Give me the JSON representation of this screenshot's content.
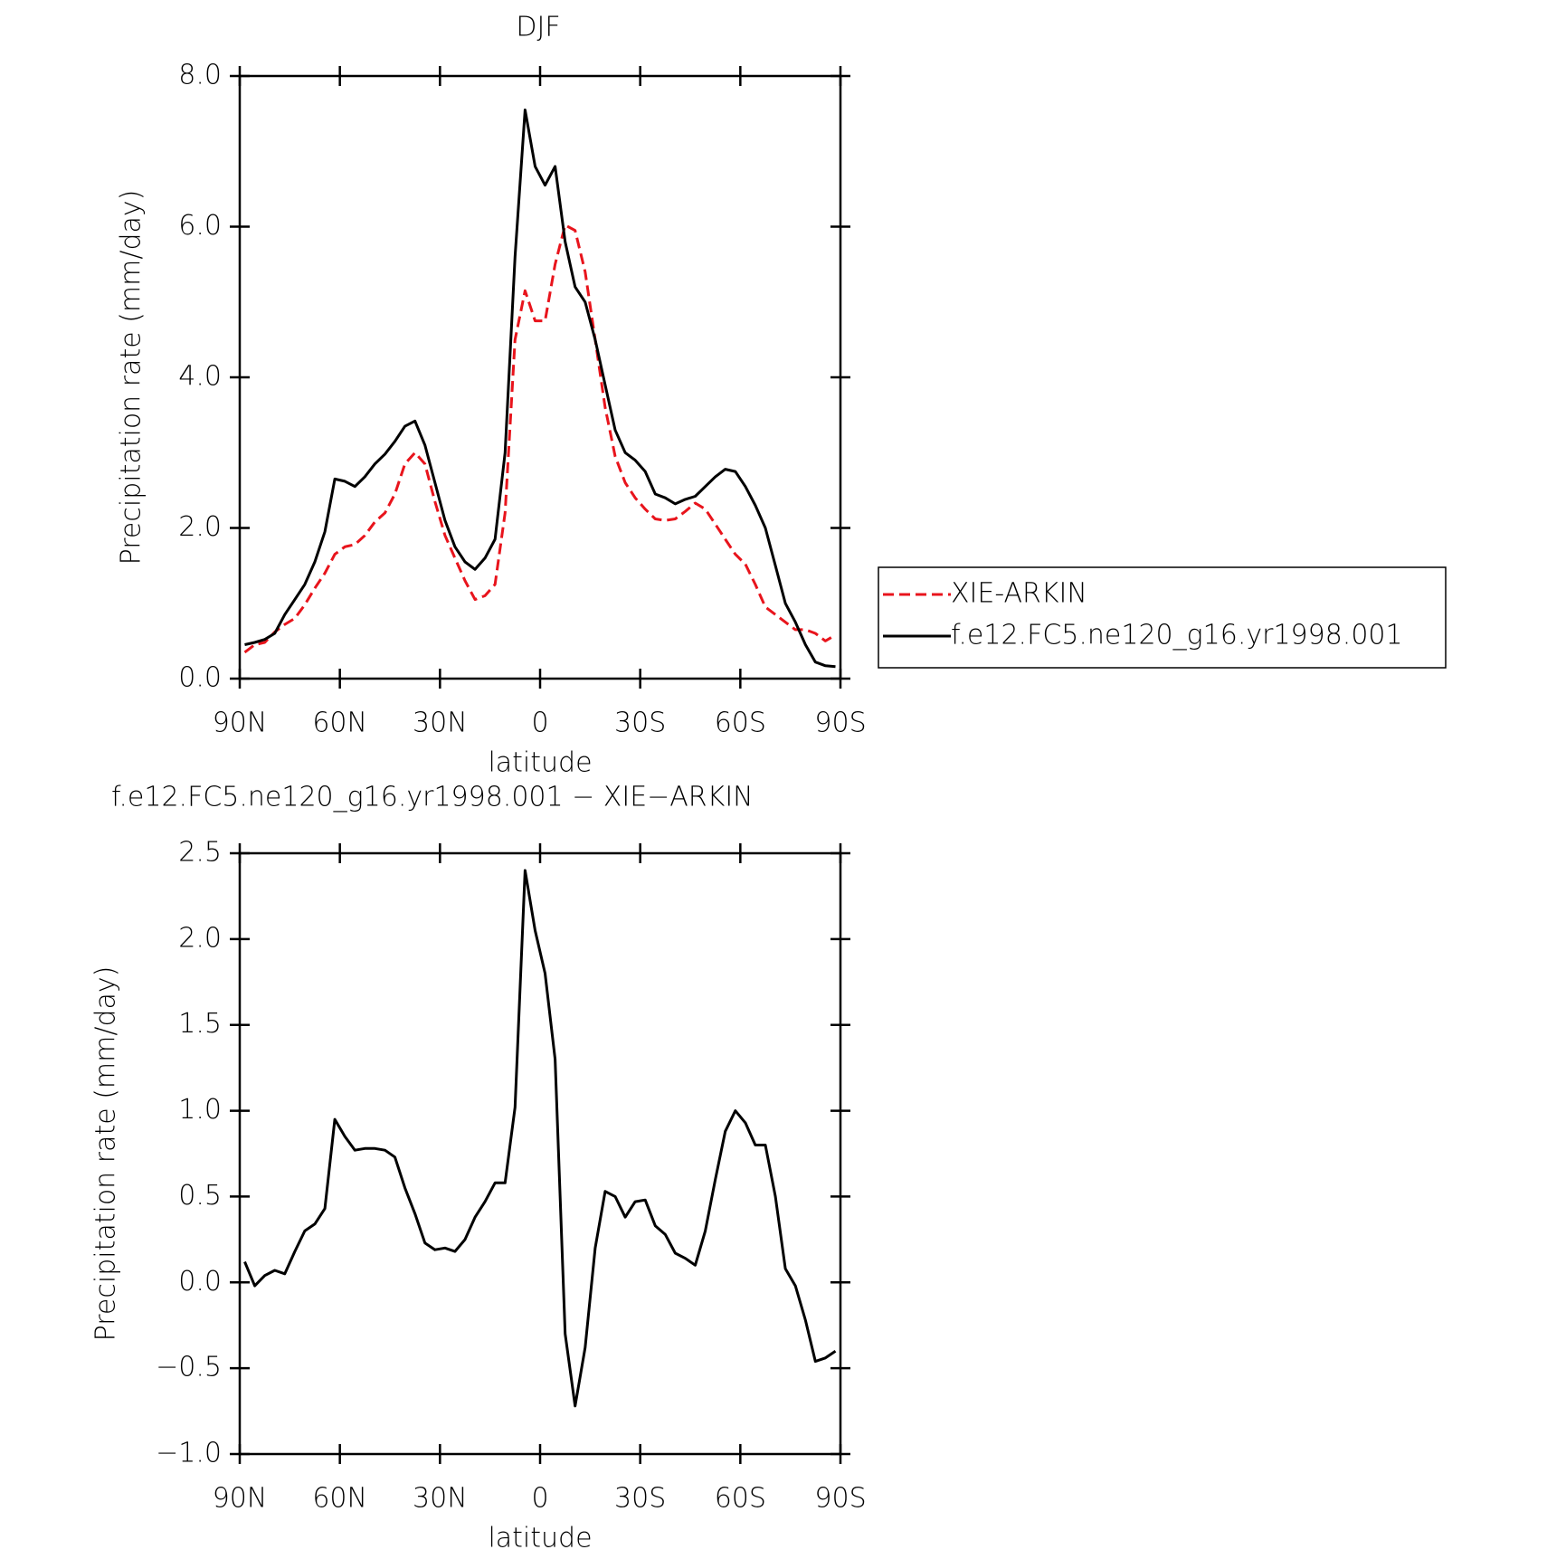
{
  "chart_data": [
    {
      "type": "line",
      "title": "DJF",
      "xlabel": "latitude",
      "ylabel": "Precipitation rate (mm/day)",
      "x": [
        88.5,
        85.5,
        82.5,
        79.5,
        76.5,
        73.5,
        70.5,
        67.5,
        64.5,
        61.5,
        58.5,
        55.5,
        52.5,
        49.5,
        46.5,
        43.5,
        40.5,
        37.5,
        34.5,
        31.5,
        28.5,
        25.5,
        22.5,
        19.5,
        16.5,
        13.5,
        10.5,
        7.5,
        4.5,
        1.5,
        -1.5,
        -4.5,
        -7.5,
        -10.5,
        -13.5,
        -16.5,
        -19.5,
        -22.5,
        -25.5,
        -28.5,
        -31.5,
        -34.5,
        -37.5,
        -40.5,
        -43.5,
        -46.5,
        -49.5,
        -52.5,
        -55.5,
        -58.5,
        -61.5,
        -64.5,
        -67.5,
        -70.5,
        -73.5,
        -76.5,
        -79.5,
        -82.5,
        -85.5,
        -88.5
      ],
      "series": [
        {
          "name": "XIE-ARKIN",
          "color": "#e8141c",
          "linestyle": "dashed",
          "values": [
            0.35,
            0.45,
            0.48,
            0.62,
            0.72,
            0.8,
            0.98,
            1.2,
            1.4,
            1.65,
            1.75,
            1.78,
            1.9,
            2.08,
            2.2,
            2.45,
            2.85,
            3.0,
            2.85,
            2.35,
            1.9,
            1.6,
            1.3,
            1.05,
            1.1,
            1.25,
            2.2,
            4.5,
            5.15,
            4.75,
            4.75,
            5.5,
            6.02,
            5.95,
            5.4,
            4.5,
            3.6,
            2.95,
            2.6,
            2.4,
            2.25,
            2.12,
            2.1,
            2.12,
            2.22,
            2.33,
            2.25,
            2.05,
            1.85,
            1.65,
            1.52,
            1.25,
            0.95,
            0.85,
            0.75,
            0.65,
            0.65,
            0.6,
            0.5,
            0.58
          ]
        },
        {
          "name": "f.e12.FC5.ne120_g16.yr1998.001",
          "color": "#000000",
          "linestyle": "solid",
          "values": [
            0.45,
            0.48,
            0.52,
            0.6,
            0.85,
            1.05,
            1.25,
            1.55,
            1.95,
            2.65,
            2.62,
            2.55,
            2.68,
            2.85,
            2.98,
            3.15,
            3.35,
            3.42,
            3.1,
            2.6,
            2.1,
            1.75,
            1.55,
            1.45,
            1.6,
            1.85,
            3.0,
            5.6,
            7.55,
            6.8,
            6.55,
            6.8,
            5.8,
            5.2,
            5.0,
            4.5,
            3.9,
            3.3,
            3.0,
            2.9,
            2.75,
            2.45,
            2.4,
            2.32,
            2.38,
            2.42,
            2.55,
            2.68,
            2.78,
            2.75,
            2.55,
            2.3,
            2.0,
            1.5,
            1.0,
            0.75,
            0.45,
            0.22,
            0.17,
            0.16
          ]
        }
      ],
      "xlim": [
        90,
        -90
      ],
      "xticks": [
        {
          "value": 90,
          "label": "90N"
        },
        {
          "value": 60,
          "label": "60N"
        },
        {
          "value": 30,
          "label": "30N"
        },
        0,
        {
          "value": -30,
          "label": "30S"
        },
        {
          "value": -60,
          "label": "60S"
        },
        {
          "value": -90,
          "label": "90S"
        }
      ],
      "ylim": [
        0,
        8
      ],
      "yticks": [
        {
          "value": 0,
          "label": "0.0"
        },
        {
          "value": 2,
          "label": "2.0"
        },
        {
          "value": 4,
          "label": "4.0"
        },
        {
          "value": 6,
          "label": "6.0"
        },
        {
          "value": 8,
          "label": "8.0"
        }
      ],
      "legend": "right"
    },
    {
      "type": "line",
      "title": "f.e12.FC5.ne120_g16.yr1998.001 − XIE−ARKIN",
      "xlabel": "latitude",
      "ylabel": "Precipitation rate (mm/day)",
      "x": [
        88.5,
        85.5,
        82.5,
        79.5,
        76.5,
        73.5,
        70.5,
        67.5,
        64.5,
        61.5,
        58.5,
        55.5,
        52.5,
        49.5,
        46.5,
        43.5,
        40.5,
        37.5,
        34.5,
        31.5,
        28.5,
        25.5,
        22.5,
        19.5,
        16.5,
        13.5,
        10.5,
        7.5,
        4.5,
        1.5,
        -1.5,
        -4.5,
        -7.5,
        -10.5,
        -13.5,
        -16.5,
        -19.5,
        -22.5,
        -25.5,
        -28.5,
        -31.5,
        -34.5,
        -37.5,
        -40.5,
        -43.5,
        -46.5,
        -49.5,
        -52.5,
        -55.5,
        -58.5,
        -61.5,
        -64.5,
        -67.5,
        -70.5,
        -73.5,
        -76.5,
        -79.5,
        -82.5,
        -85.5,
        -88.5
      ],
      "series": [
        {
          "color": "#000000",
          "linestyle": "solid",
          "values": [
            0.12,
            -0.02,
            0.04,
            0.07,
            0.05,
            0.18,
            0.3,
            0.34,
            0.43,
            0.95,
            0.85,
            0.77,
            0.78,
            0.78,
            0.77,
            0.73,
            0.55,
            0.4,
            0.23,
            0.19,
            0.2,
            0.18,
            0.25,
            0.38,
            0.47,
            0.58,
            0.58,
            1.02,
            2.4,
            2.05,
            1.8,
            1.3,
            -0.3,
            -0.72,
            -0.38,
            0.2,
            0.53,
            0.5,
            0.38,
            0.47,
            0.48,
            0.33,
            0.28,
            0.17,
            0.14,
            0.1,
            0.3,
            0.6,
            0.88,
            1.0,
            0.93,
            0.8,
            0.8,
            0.5,
            0.08,
            -0.02,
            -0.22,
            -0.46,
            -0.44,
            -0.4
          ]
        }
      ],
      "xlim": [
        90,
        -90
      ],
      "xticks": [
        {
          "value": 90,
          "label": "90N"
        },
        {
          "value": 60,
          "label": "60N"
        },
        {
          "value": 30,
          "label": "30N"
        },
        0,
        {
          "value": -30,
          "label": "30S"
        },
        {
          "value": -60,
          "label": "60S"
        },
        {
          "value": -90,
          "label": "90S"
        }
      ],
      "ylim": [
        -1,
        2.5
      ],
      "yticks": [
        {
          "value": -1,
          "label": "−1.0"
        },
        {
          "value": -0.5,
          "label": "−0.5"
        },
        {
          "value": 0,
          "label": "0.0"
        },
        0.5,
        {
          "value": 1,
          "label": "1.0"
        },
        1.5,
        {
          "value": 2,
          "label": "2.0"
        },
        2.5
      ]
    }
  ]
}
